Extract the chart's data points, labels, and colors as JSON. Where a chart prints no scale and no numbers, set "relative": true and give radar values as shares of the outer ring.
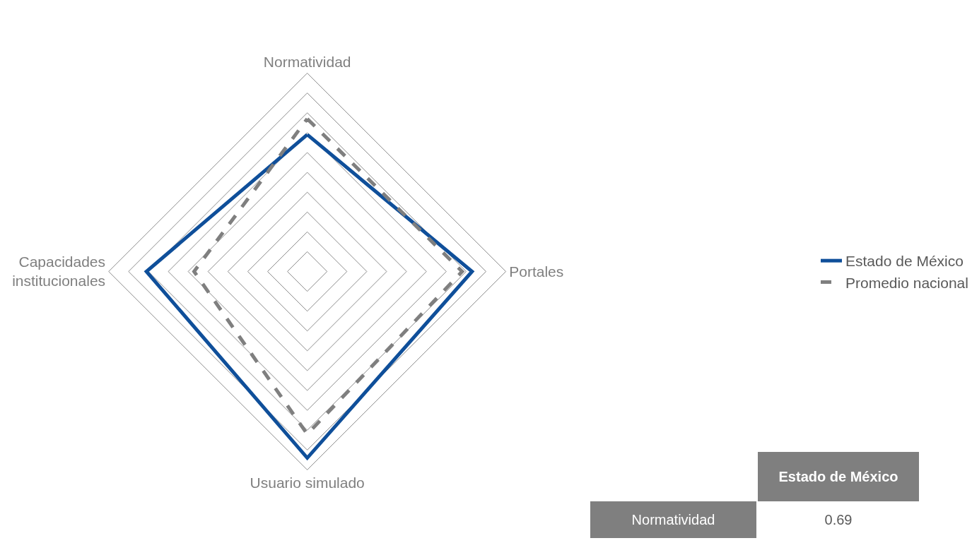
{
  "chart_data": {
    "type": "radar",
    "relative": true,
    "grid": true,
    "legend": "right",
    "marker": "none",
    "categories": [
      "Normatividad",
      "Portales",
      "Usuario simulado",
      "Capacidades institucionales"
    ],
    "series": [
      {
        "name": "Estado de México",
        "color": "#0f4f9a",
        "line_style": "solid",
        "values": [
          0.69,
          0.83,
          0.94,
          0.81
        ]
      },
      {
        "name": "Promedio nacional",
        "color": "#7f7f7f",
        "line_style": "dashed",
        "values": [
          0.77,
          0.78,
          0.82,
          0.57
        ]
      }
    ],
    "annotations": [
      "Estado de México",
      "Normatividad",
      "0.69"
    ]
  }
}
